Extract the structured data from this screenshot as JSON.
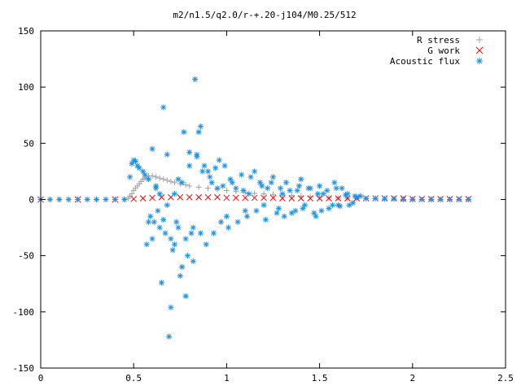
{
  "chart_data": {
    "type": "scatter",
    "title": "m2/n1.5/q2.0/r-+.20-j104/M0.25/512",
    "xlabel": "",
    "ylabel": "",
    "xlim": [
      0,
      2.5
    ],
    "ylim": [
      -150,
      150
    ],
    "x_ticks": [
      0,
      0.5,
      1,
      1.5,
      2,
      2.5
    ],
    "x_tick_labels": [
      "0",
      "0.5",
      "1",
      "1.5",
      "2",
      "2.5"
    ],
    "y_ticks": [
      -150,
      -100,
      -50,
      0,
      50,
      100,
      150
    ],
    "y_tick_labels": [
      "-150",
      "-100",
      "-50",
      "0",
      "50",
      "100",
      "150"
    ],
    "grid": false,
    "legend_position": "top-right",
    "series": [
      {
        "name": "R stress",
        "marker": "plus",
        "color": "#a0a0a0",
        "x": [
          0.0,
          0.1,
          0.2,
          0.3,
          0.4,
          0.45,
          0.47,
          0.48,
          0.49,
          0.5,
          0.51,
          0.52,
          0.53,
          0.54,
          0.55,
          0.56,
          0.57,
          0.58,
          0.6,
          0.62,
          0.64,
          0.66,
          0.68,
          0.7,
          0.72,
          0.75,
          0.78,
          0.8,
          0.85,
          0.9,
          0.95,
          1.0,
          1.05,
          1.1,
          1.15,
          1.2,
          1.25,
          1.3,
          1.35,
          1.4,
          1.45,
          1.5,
          1.55,
          1.6,
          1.65,
          1.7,
          1.75,
          1.8,
          1.9,
          2.0,
          2.1,
          2.2,
          2.3
        ],
        "y": [
          0,
          0,
          0,
          0,
          0,
          0,
          1,
          3,
          5,
          8,
          10,
          12,
          14,
          16,
          18,
          19,
          20,
          21,
          21,
          20,
          19,
          18,
          17,
          16,
          15,
          14,
          13,
          12,
          11,
          10,
          9,
          8,
          7,
          6,
          5.5,
          5,
          4.5,
          4,
          3.5,
          3,
          2.5,
          2,
          1.5,
          1.2,
          1,
          0.8,
          0.6,
          0.5,
          0.3,
          0.2,
          0.1,
          0.05,
          0
        ]
      },
      {
        "name": "G work",
        "marker": "cross",
        "color": "#ff0000",
        "x": [
          0.0,
          0.2,
          0.4,
          0.5,
          0.55,
          0.6,
          0.65,
          0.7,
          0.75,
          0.8,
          0.85,
          0.9,
          0.95,
          1.0,
          1.05,
          1.1,
          1.15,
          1.2,
          1.25,
          1.3,
          1.35,
          1.4,
          1.45,
          1.5,
          1.55,
          1.6,
          1.65,
          1.7,
          1.75,
          1.8,
          1.85,
          1.9,
          1.95,
          2.0,
          2.05,
          2.1,
          2.15,
          2.2,
          2.25,
          2.3
        ],
        "y": [
          0,
          0,
          0,
          0.5,
          1,
          1.5,
          2,
          2,
          2,
          2,
          2,
          2,
          2,
          1.5,
          1.5,
          1.5,
          1.5,
          1.5,
          1.5,
          1,
          1,
          1,
          1,
          1,
          1,
          1,
          1,
          1,
          1,
          1,
          1,
          1,
          1,
          0.5,
          0.5,
          0.5,
          0.5,
          0.5,
          0.5,
          0.5
        ]
      },
      {
        "name": "Acoustic flux",
        "marker": "star",
        "color": "#1e90e6",
        "x": [
          0.0,
          0.05,
          0.1,
          0.15,
          0.2,
          0.25,
          0.3,
          0.35,
          0.4,
          0.45,
          0.48,
          0.49,
          0.5,
          0.51,
          0.52,
          0.53,
          0.55,
          0.56,
          0.58,
          0.6,
          0.62,
          0.63,
          0.65,
          0.66,
          0.68,
          0.69,
          0.7,
          0.72,
          0.74,
          0.75,
          0.77,
          0.78,
          0.8,
          0.82,
          0.83,
          0.85,
          0.86,
          0.88,
          0.9,
          0.92,
          0.94,
          0.96,
          0.98,
          1.0,
          1.02,
          1.05,
          1.08,
          1.1,
          1.12,
          1.15,
          1.18,
          1.2,
          1.22,
          1.25,
          1.28,
          1.3,
          1.32,
          1.35,
          1.38,
          1.4,
          1.42,
          1.45,
          1.48,
          1.5,
          1.52,
          1.55,
          1.58,
          1.6,
          1.62,
          1.65,
          1.68,
          1.7,
          1.72,
          1.75,
          1.8,
          1.85,
          1.9,
          1.95,
          2.0,
          2.05,
          2.1,
          2.15,
          2.2,
          2.25,
          2.3,
          0.57,
          0.59,
          0.61,
          0.64,
          0.67,
          0.71,
          0.73,
          0.76,
          0.79,
          0.81,
          0.84,
          0.87,
          0.89,
          0.91,
          0.93,
          0.95,
          0.97,
          0.99,
          1.01,
          1.03,
          1.06,
          1.09,
          1.11,
          1.13,
          1.16,
          1.19,
          1.21,
          1.24,
          1.27,
          1.29,
          1.31,
          1.34,
          1.37,
          1.39,
          1.41,
          1.44,
          1.47,
          1.49,
          1.51,
          1.54,
          1.57,
          1.59,
          1.61,
          1.64,
          1.66,
          1.69,
          0.58,
          0.6,
          0.62,
          0.64,
          0.66,
          0.68,
          0.7,
          0.72,
          0.74,
          0.76,
          0.78,
          0.8,
          0.82,
          0.84,
          0.86
        ],
        "y": [
          0,
          0,
          0,
          0,
          0,
          0,
          0,
          0,
          0,
          0,
          20,
          32,
          35,
          34,
          30,
          28,
          25,
          22,
          18,
          45,
          10,
          -10,
          -74,
          82,
          40,
          -122,
          -35,
          5,
          -25,
          -68,
          60,
          -86,
          42,
          -55,
          107,
          60,
          65,
          30,
          25,
          15,
          28,
          35,
          12,
          -15,
          18,
          10,
          22,
          -10,
          5,
          25,
          15,
          -5,
          10,
          20,
          -8,
          5,
          15,
          -12,
          8,
          18,
          -5,
          10,
          -15,
          12,
          5,
          -8,
          15,
          -5,
          10,
          5,
          -3,
          2,
          3,
          1,
          1,
          0.5,
          0.5,
          0,
          0,
          0,
          0,
          0,
          0,
          0,
          0,
          -40,
          -15,
          -20,
          5,
          -30,
          -45,
          -20,
          15,
          -50,
          -30,
          40,
          25,
          -40,
          20,
          -30,
          10,
          -20,
          30,
          -25,
          15,
          -20,
          8,
          -15,
          20,
          -10,
          12,
          -18,
          15,
          -12,
          10,
          -15,
          8,
          -10,
          12,
          -8,
          10,
          -12,
          5,
          -10,
          8,
          -5,
          10,
          -6,
          4,
          -5,
          3,
          -20,
          -35,
          12,
          -25,
          -18,
          -5,
          -96,
          -40,
          18,
          -60,
          -35,
          30,
          -25,
          38,
          -30
        ]
      }
    ]
  }
}
